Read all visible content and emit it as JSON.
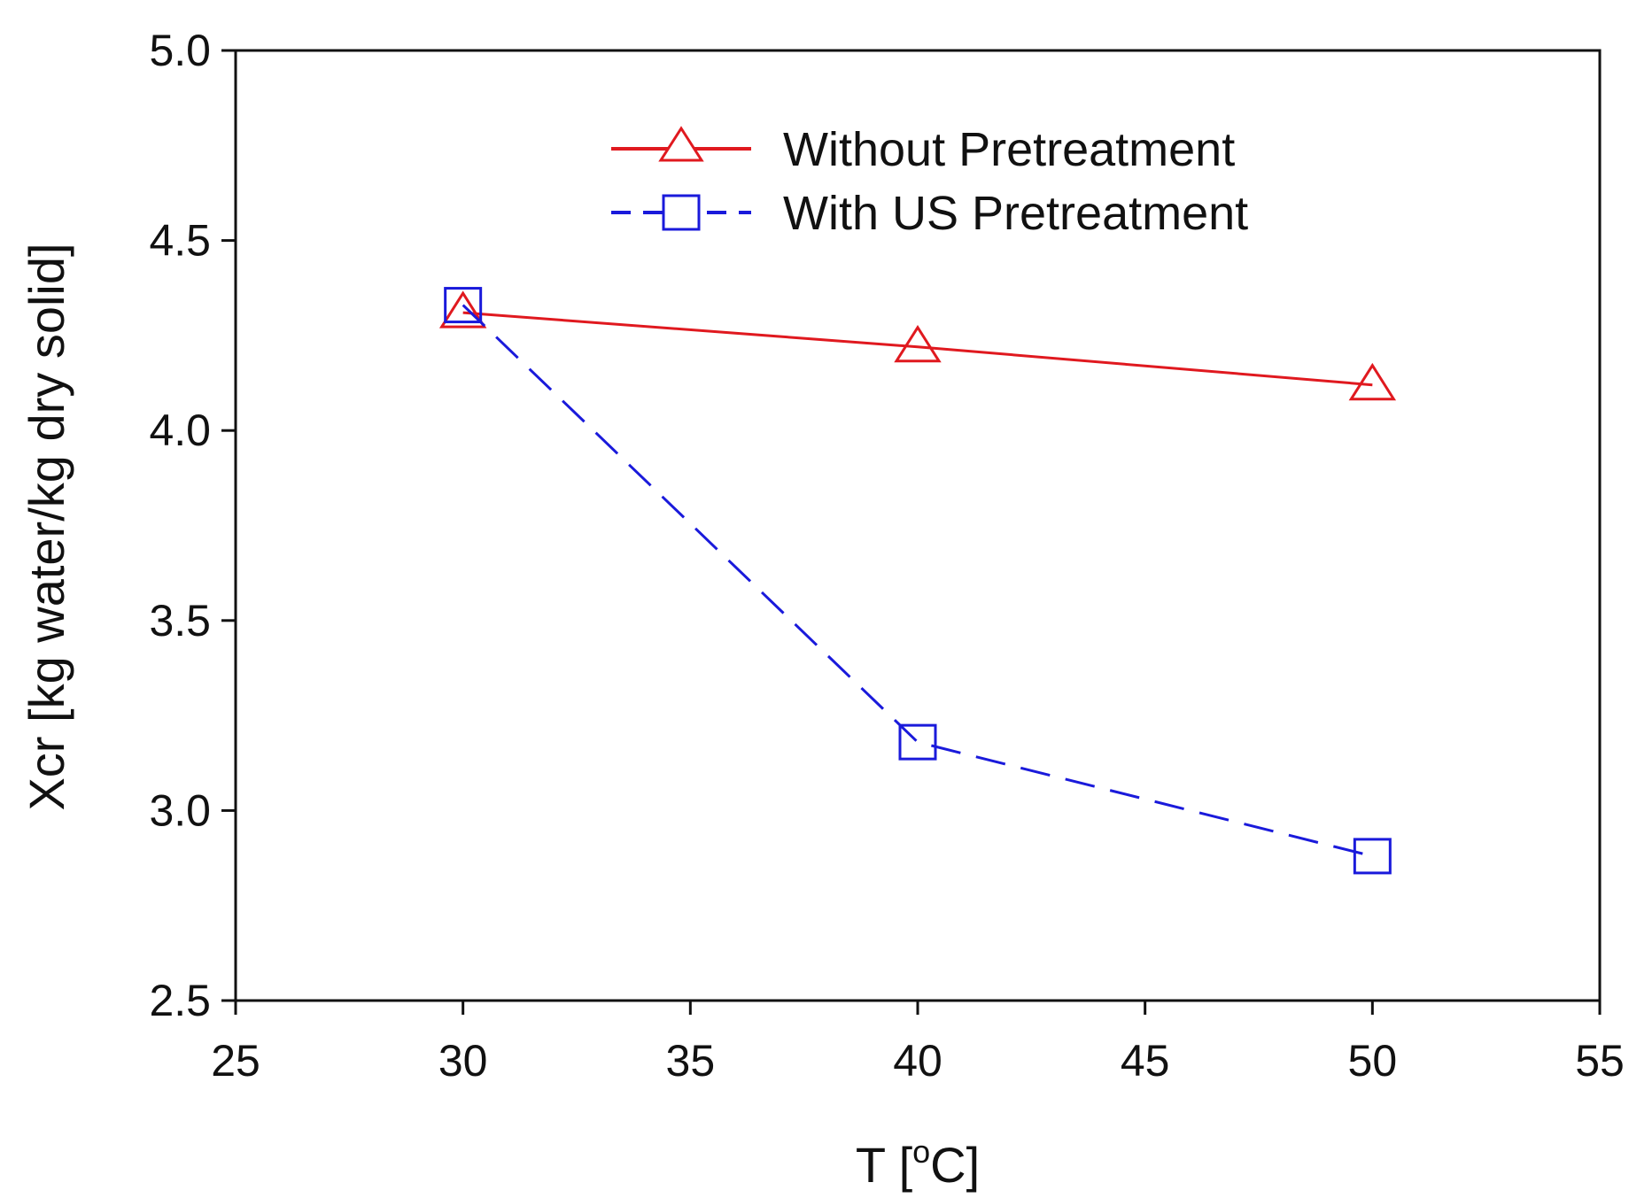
{
  "chart_data": {
    "type": "line",
    "title": "",
    "xlabel": "T [",
    "xlabel_sup": "o",
    "xlabel_end": "C]",
    "ylabel": "Xcr [kg water/kg dry solid]",
    "xlim": [
      25,
      55
    ],
    "ylim": [
      2.5,
      5.0
    ],
    "xticks": [
      "25",
      "30",
      "35",
      "40",
      "45",
      "50",
      "55"
    ],
    "yticks": [
      "2.5",
      "3.0",
      "3.5",
      "4.0",
      "4.5",
      "5.0"
    ],
    "x": [
      30,
      40,
      50
    ],
    "grid": false,
    "legend_position": "top-center",
    "series": [
      {
        "name": "Without Pretreatment",
        "values": [
          4.31,
          4.22,
          4.12
        ],
        "color": "#e0191f",
        "marker": "triangle",
        "line": "solid"
      },
      {
        "name": "With US Pretreatment",
        "values": [
          4.33,
          3.18,
          2.88
        ],
        "color": "#1a1adb",
        "marker": "square",
        "line": "dashed"
      }
    ]
  }
}
